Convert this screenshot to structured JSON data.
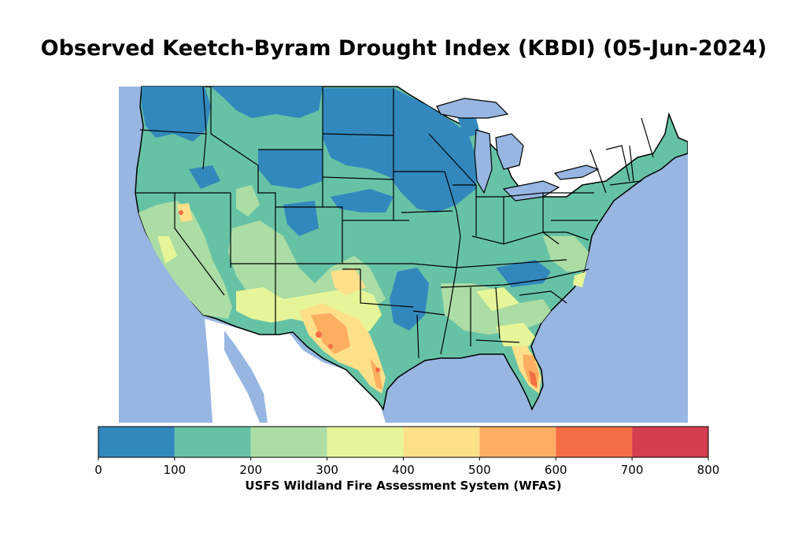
{
  "title": "Observed Keetch-Byram Drought Index (KBDI) (05-Jun-2024)",
  "colorbar": {
    "label": "USFS Wildland Fire Assessment System (WFAS)",
    "ticks": [
      "0",
      "100",
      "200",
      "300",
      "400",
      "500",
      "600",
      "700",
      "800"
    ],
    "bins": [
      {
        "min": 0,
        "max": 100,
        "color": "#3288bd"
      },
      {
        "min": 100,
        "max": 200,
        "color": "#66c2a5"
      },
      {
        "min": 200,
        "max": 300,
        "color": "#abdda4"
      },
      {
        "min": 300,
        "max": 400,
        "color": "#e6f598"
      },
      {
        "min": 400,
        "max": 500,
        "color": "#fee08b"
      },
      {
        "min": 500,
        "max": 600,
        "color": "#fdae61"
      },
      {
        "min": 600,
        "max": 700,
        "color": "#f46d43"
      },
      {
        "min": 700,
        "max": 800,
        "color": "#d53e4f"
      }
    ]
  },
  "colors": {
    "water": "#97b6e1",
    "land_outside": "#ffffff",
    "borders": "#000000"
  }
}
